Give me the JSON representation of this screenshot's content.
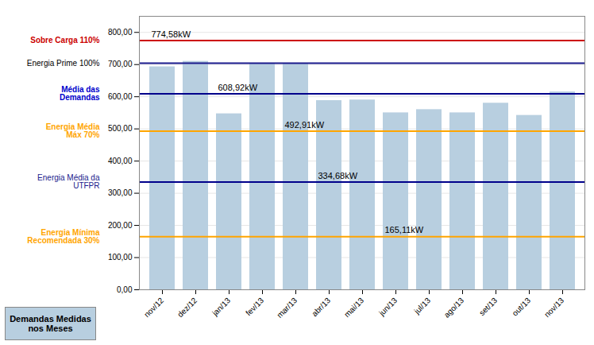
{
  "chart_data": {
    "type": "bar",
    "categories": [
      "nov/12",
      "dez/12",
      "jan/13",
      "fev/13",
      "mar/13",
      "abr/13",
      "mai/13",
      "jun/13",
      "jul/13",
      "ago/13",
      "set/13",
      "out/13",
      "nov/13"
    ],
    "series": [
      {
        "name": "Demandas Medidas\nnos Meses",
        "color": "#b8cfe0",
        "values": [
          693,
          710,
          547,
          703,
          703,
          588,
          590,
          550,
          560,
          550,
          580,
          542,
          615
        ]
      }
    ],
    "ylim": [
      0,
      850
    ],
    "yticks": [
      {
        "value": 0,
        "label": "0,00"
      },
      {
        "value": 100,
        "label": "100,00"
      },
      {
        "value": 200,
        "label": "200,00"
      },
      {
        "value": 300,
        "label": "300,00"
      },
      {
        "value": 400,
        "label": "400,00"
      },
      {
        "value": 500,
        "label": "500,00"
      },
      {
        "value": 600,
        "label": "600,00"
      },
      {
        "value": 700,
        "label": "700,00"
      },
      {
        "value": 800,
        "label": "800,00"
      }
    ],
    "grid": true,
    "legend": "bottom-left",
    "lines": [
      {
        "y": 774.58,
        "color": "#cc0000",
        "label": "Sobre Carga 110%",
        "label_color": "#cc0000",
        "bold": true
      },
      {
        "y": 704.16,
        "color": "#1a1a8c",
        "label": "Energia Prime 100%",
        "label_color": "#000000",
        "bold": false
      },
      {
        "y": 608.92,
        "color": "#00008b",
        "label": "Média das\nDemandas",
        "label_color": "#0000cc",
        "bold": true
      },
      {
        "y": 492.91,
        "color": "#ffa500",
        "label": "Energia Média\nMáx 70%",
        "label_color": "#ffa500",
        "bold": true
      },
      {
        "y": 334.68,
        "color": "#00008b",
        "label": "Energia Média da\nUTFPR",
        "label_color": "#1a1a8c",
        "bold": false
      },
      {
        "y": 165.11,
        "color": "#ffa500",
        "label": "Energia Mínima\nRecomendada 30%",
        "label_color": "#ffa500",
        "bold": true
      }
    ],
    "annotations": [
      {
        "text": "774,58kW",
        "y": 774.58,
        "category": "nov/12"
      },
      {
        "text": "608,92kW",
        "y": 608.92,
        "category": "jan/13"
      },
      {
        "text": "492,91kW",
        "y": 492.91,
        "category": "mar/13"
      },
      {
        "text": "334,68kW",
        "y": 334.68,
        "category": "abr/13"
      },
      {
        "text": "165,11kW",
        "y": 165.11,
        "category": "jun/13"
      }
    ]
  }
}
